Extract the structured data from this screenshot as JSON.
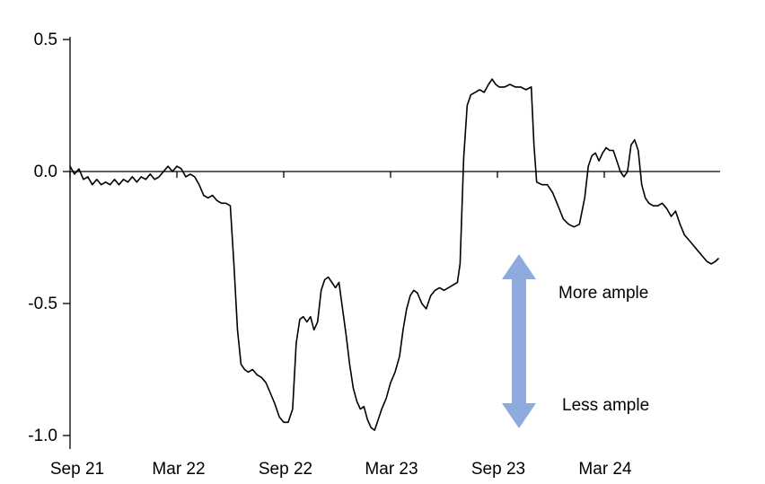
{
  "chart_data": {
    "type": "line",
    "title": "",
    "xlabel": "",
    "ylabel": "",
    "x_unit": "months since Sep 2021",
    "xlim": [
      0,
      36.5
    ],
    "ylim": [
      -1.0,
      0.5
    ],
    "grid": false,
    "legend": false,
    "line_color": "#000000",
    "yticks": [
      0.5,
      0.0,
      -0.5,
      -1.0
    ],
    "ytick_labels": [
      "0.5",
      "0.0",
      "-0.5",
      "-1.0"
    ],
    "xticks": [
      0,
      6,
      12,
      18,
      24,
      30
    ],
    "xtick_labels": [
      "Sep 21",
      "Mar 22",
      "Sep 22",
      "Mar 23",
      "Sep 23",
      "Mar 24"
    ],
    "annotations": [
      {
        "text": "More ample",
        "color": "#000000"
      },
      {
        "text": "Less ample",
        "color": "#000000"
      }
    ],
    "arrow": {
      "shape": "vertical-double-arrow",
      "color": "#8FAADC"
    },
    "series": [
      {
        "name": "",
        "points": [
          [
            0,
            0.02
          ],
          [
            0.25,
            -0.01
          ],
          [
            0.5,
            0.01
          ],
          [
            0.75,
            -0.03
          ],
          [
            1,
            -0.02
          ],
          [
            1.25,
            -0.05
          ],
          [
            1.5,
            -0.03
          ],
          [
            1.75,
            -0.05
          ],
          [
            2,
            -0.04
          ],
          [
            2.25,
            -0.05
          ],
          [
            2.5,
            -0.03
          ],
          [
            2.75,
            -0.05
          ],
          [
            3,
            -0.03
          ],
          [
            3.25,
            -0.04
          ],
          [
            3.5,
            -0.02
          ],
          [
            3.75,
            -0.04
          ],
          [
            4,
            -0.02
          ],
          [
            4.25,
            -0.03
          ],
          [
            4.5,
            -0.01
          ],
          [
            4.75,
            -0.03
          ],
          [
            5,
            -0.02
          ],
          [
            5.25,
            0
          ],
          [
            5.5,
            0.02
          ],
          [
            5.75,
            0
          ],
          [
            6,
            0.02
          ],
          [
            6.25,
            0.01
          ],
          [
            6.5,
            -0.02
          ],
          [
            6.75,
            -0.01
          ],
          [
            7,
            -0.02
          ],
          [
            7.25,
            -0.05
          ],
          [
            7.5,
            -0.09
          ],
          [
            7.75,
            -0.1
          ],
          [
            8,
            -0.09
          ],
          [
            8.25,
            -0.11
          ],
          [
            8.5,
            -0.12
          ],
          [
            8.75,
            -0.12
          ],
          [
            9,
            -0.13
          ],
          [
            9.2,
            -0.35
          ],
          [
            9.4,
            -0.6
          ],
          [
            9.6,
            -0.73
          ],
          [
            9.8,
            -0.75
          ],
          [
            10,
            -0.76
          ],
          [
            10.25,
            -0.75
          ],
          [
            10.5,
            -0.77
          ],
          [
            10.75,
            -0.78
          ],
          [
            11,
            -0.8
          ],
          [
            11.25,
            -0.84
          ],
          [
            11.5,
            -0.88
          ],
          [
            11.75,
            -0.93
          ],
          [
            12,
            -0.95
          ],
          [
            12.25,
            -0.95
          ],
          [
            12.5,
            -0.9
          ],
          [
            12.7,
            -0.65
          ],
          [
            12.9,
            -0.56
          ],
          [
            13.1,
            -0.55
          ],
          [
            13.3,
            -0.57
          ],
          [
            13.5,
            -0.55
          ],
          [
            13.7,
            -0.6
          ],
          [
            13.9,
            -0.57
          ],
          [
            14.1,
            -0.45
          ],
          [
            14.3,
            -0.41
          ],
          [
            14.5,
            -0.4
          ],
          [
            14.7,
            -0.42
          ],
          [
            14.9,
            -0.44
          ],
          [
            15.1,
            -0.42
          ],
          [
            15.3,
            -0.52
          ],
          [
            15.5,
            -0.62
          ],
          [
            15.7,
            -0.73
          ],
          [
            15.9,
            -0.82
          ],
          [
            16.1,
            -0.87
          ],
          [
            16.3,
            -0.9
          ],
          [
            16.5,
            -0.89
          ],
          [
            16.7,
            -0.94
          ],
          [
            16.9,
            -0.97
          ],
          [
            17.1,
            -0.98
          ],
          [
            17.3,
            -0.94
          ],
          [
            17.5,
            -0.9
          ],
          [
            17.75,
            -0.86
          ],
          [
            18,
            -0.8
          ],
          [
            18.25,
            -0.76
          ],
          [
            18.5,
            -0.7
          ],
          [
            18.7,
            -0.6
          ],
          [
            18.9,
            -0.52
          ],
          [
            19.1,
            -0.47
          ],
          [
            19.3,
            -0.45
          ],
          [
            19.5,
            -0.46
          ],
          [
            19.75,
            -0.5
          ],
          [
            20,
            -0.52
          ],
          [
            20.25,
            -0.47
          ],
          [
            20.5,
            -0.45
          ],
          [
            20.75,
            -0.44
          ],
          [
            21,
            -0.45
          ],
          [
            21.25,
            -0.44
          ],
          [
            21.5,
            -0.43
          ],
          [
            21.75,
            -0.42
          ],
          [
            21.9,
            -0.35
          ],
          [
            22.1,
            0.05
          ],
          [
            22.3,
            0.25
          ],
          [
            22.5,
            0.29
          ],
          [
            22.75,
            0.3
          ],
          [
            23,
            0.31
          ],
          [
            23.25,
            0.3
          ],
          [
            23.5,
            0.33
          ],
          [
            23.7,
            0.35
          ],
          [
            23.9,
            0.33
          ],
          [
            24.1,
            0.32
          ],
          [
            24.4,
            0.32
          ],
          [
            24.7,
            0.33
          ],
          [
            25,
            0.32
          ],
          [
            25.3,
            0.32
          ],
          [
            25.6,
            0.31
          ],
          [
            25.9,
            0.32
          ],
          [
            26.05,
            0.1
          ],
          [
            26.2,
            -0.04
          ],
          [
            26.5,
            -0.05
          ],
          [
            26.8,
            -0.05
          ],
          [
            27.1,
            -0.08
          ],
          [
            27.4,
            -0.13
          ],
          [
            27.7,
            -0.18
          ],
          [
            28,
            -0.2
          ],
          [
            28.3,
            -0.21
          ],
          [
            28.6,
            -0.2
          ],
          [
            28.9,
            -0.1
          ],
          [
            29.1,
            0.02
          ],
          [
            29.3,
            0.06
          ],
          [
            29.5,
            0.07
          ],
          [
            29.7,
            0.04
          ],
          [
            29.9,
            0.07
          ],
          [
            30.1,
            0.09
          ],
          [
            30.3,
            0.08
          ],
          [
            30.5,
            0.08
          ],
          [
            30.7,
            0.04
          ],
          [
            30.9,
            0
          ],
          [
            31.1,
            -0.02
          ],
          [
            31.3,
            0
          ],
          [
            31.5,
            0.1
          ],
          [
            31.7,
            0.12
          ],
          [
            31.9,
            0.08
          ],
          [
            32.1,
            -0.05
          ],
          [
            32.3,
            -0.1
          ],
          [
            32.5,
            -0.12
          ],
          [
            32.75,
            -0.13
          ],
          [
            33,
            -0.13
          ],
          [
            33.25,
            -0.12
          ],
          [
            33.5,
            -0.14
          ],
          [
            33.75,
            -0.17
          ],
          [
            34,
            -0.15
          ],
          [
            34.25,
            -0.2
          ],
          [
            34.5,
            -0.24
          ],
          [
            34.75,
            -0.26
          ],
          [
            35,
            -0.28
          ],
          [
            35.25,
            -0.3
          ],
          [
            35.5,
            -0.32
          ],
          [
            35.75,
            -0.34
          ],
          [
            36,
            -0.35
          ],
          [
            36.25,
            -0.34
          ],
          [
            36.4,
            -0.33
          ]
        ]
      }
    ]
  }
}
